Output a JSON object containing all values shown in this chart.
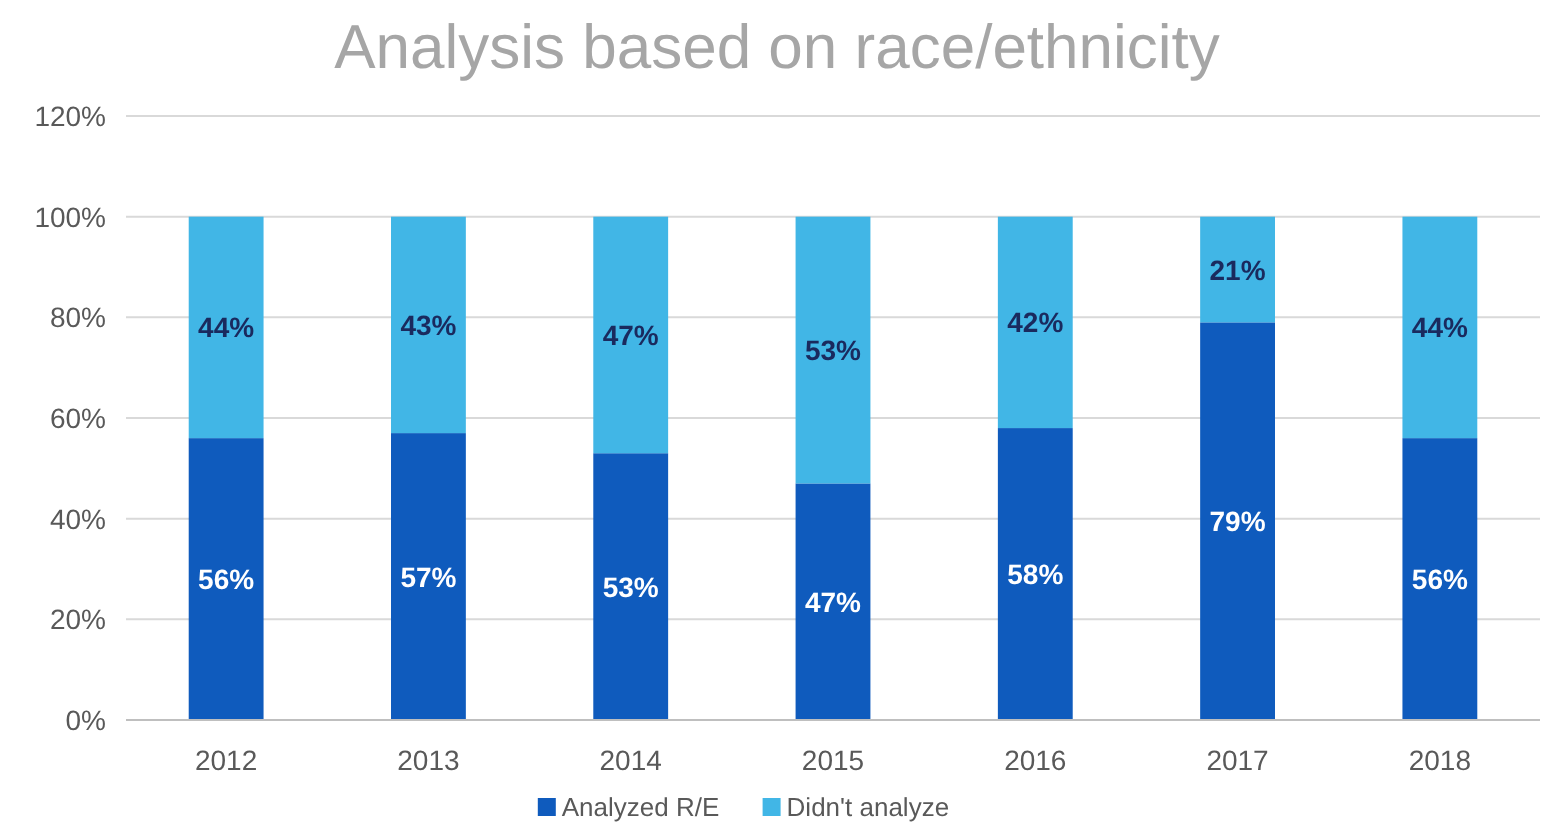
{
  "chart_data": {
    "type": "bar",
    "title": "Analysis based on race/ethnicity",
    "categories": [
      "2012",
      "2013",
      "2014",
      "2015",
      "2016",
      "2017",
      "2018"
    ],
    "stacked": true,
    "series": [
      {
        "name": "Analyzed R/E",
        "color": "#0f5bbd",
        "values": [
          56,
          57,
          53,
          47,
          58,
          79,
          56
        ],
        "value_labels": [
          "56%",
          "57%",
          "53%",
          "47%",
          "58%",
          "79%",
          "56%"
        ]
      },
      {
        "name": "Didn't analyze",
        "color": "#41b6e6",
        "values": [
          44,
          43,
          47,
          53,
          42,
          21,
          44
        ],
        "value_labels": [
          "44%",
          "43%",
          "47%",
          "53%",
          "42%",
          "21%",
          "44%"
        ]
      }
    ],
    "ylim": [
      0,
      120
    ],
    "yticks": [
      {
        "value": 0,
        "label": "0%"
      },
      {
        "value": 20,
        "label": "20%"
      },
      {
        "value": 40,
        "label": "40%"
      },
      {
        "value": 60,
        "label": "60%"
      },
      {
        "value": 80,
        "label": "80%"
      },
      {
        "value": 100,
        "label": "100%"
      },
      {
        "value": 120,
        "label": "120%"
      }
    ],
    "grid": "y",
    "legend": "bottom"
  }
}
